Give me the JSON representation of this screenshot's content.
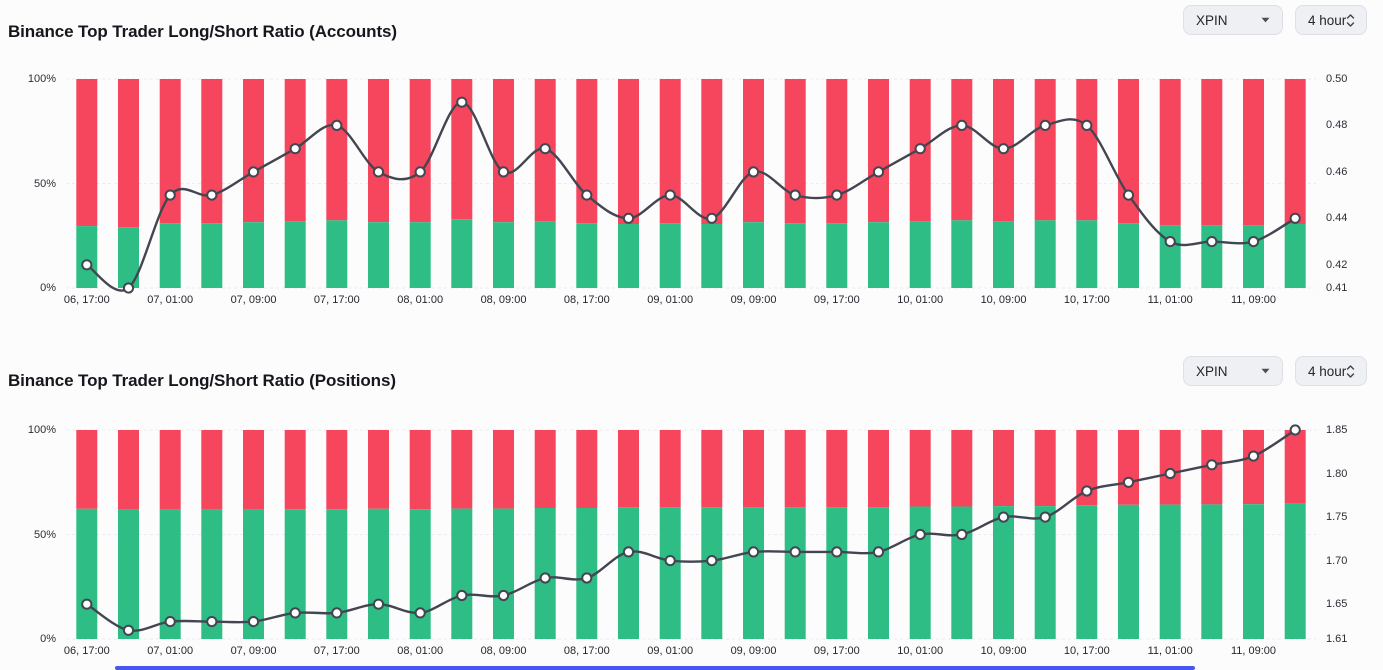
{
  "controls": {
    "symbol": "XPIN",
    "interval": "4 hour",
    "symbol_caret_icon": "caret-down",
    "interval_stepper_icon": "up-down-chevrons"
  },
  "colors": {
    "long_green": "#2ebd85",
    "short_red": "#f6465d",
    "ratio_line": "#434651",
    "dot_fill": "#ffffff",
    "grid": "#e9ebef",
    "button_bg": "#eef0f3",
    "button_border": "#dde0e6",
    "title_text": "#15171c",
    "tick_text": "#2b2e35",
    "page_bg": "#fcfcfd",
    "bottom_strip": "#4559f2"
  },
  "charts": [
    {
      "title": "Binance Top Trader Long/Short Ratio (Accounts)"
    },
    {
      "title": "Binance Top Trader Long/Short Ratio (Positions)"
    }
  ],
  "chart_data": [
    {
      "type": "bar+line",
      "title": "Binance Top Trader Long/Short Ratio (Accounts)",
      "num_bars": 30,
      "x_tick_labels": [
        "06, 17:00",
        "07, 01:00",
        "07, 09:00",
        "07, 17:00",
        "08, 01:00",
        "08, 09:00",
        "08, 17:00",
        "09, 01:00",
        "09, 09:00",
        "09, 17:00",
        "10, 01:00",
        "10, 09:00",
        "10, 17:00",
        "11, 01:00",
        "11, 09:00"
      ],
      "x_label_every_n_bars": 2,
      "left_axis": {
        "unit": "%",
        "min": 0,
        "max": 100,
        "ticks": [
          100,
          50,
          0
        ]
      },
      "right_axis": {
        "min": 0.41,
        "max": 0.5,
        "ticks": [
          0.5,
          0.48,
          0.46,
          0.44,
          0.42,
          0.41
        ]
      },
      "grid": {
        "horizontal_dashed": true,
        "vertical": false
      },
      "legend": "none",
      "series": [
        {
          "name": "long-pct",
          "type": "bar",
          "stack": true,
          "axis": "left",
          "color": "#2ebd85",
          "values": [
            29.6,
            29.1,
            31.0,
            31.0,
            31.5,
            32.0,
            32.4,
            31.5,
            31.5,
            32.9,
            31.5,
            32.0,
            31.0,
            30.6,
            31.0,
            30.6,
            31.5,
            31.0,
            31.0,
            31.5,
            32.0,
            32.4,
            32.0,
            32.4,
            32.4,
            31.0,
            30.1,
            30.1,
            30.1,
            30.6
          ]
        },
        {
          "name": "short-pct",
          "type": "bar",
          "stack": true,
          "axis": "left",
          "color": "#f6465d",
          "values": [
            70.4,
            70.9,
            69.0,
            69.0,
            68.5,
            68.0,
            67.6,
            68.5,
            68.5,
            67.1,
            68.5,
            68.0,
            69.0,
            69.4,
            69.0,
            69.4,
            68.5,
            69.0,
            69.0,
            68.5,
            68.0,
            67.6,
            68.0,
            67.6,
            67.6,
            69.0,
            69.9,
            69.9,
            69.9,
            69.4
          ]
        },
        {
          "name": "long-short-ratio",
          "type": "line",
          "axis": "right",
          "color": "#434651",
          "point_fill": "#ffffff",
          "values": [
            0.42,
            0.41,
            0.45,
            0.45,
            0.46,
            0.47,
            0.48,
            0.46,
            0.46,
            0.49,
            0.46,
            0.47,
            0.45,
            0.44,
            0.45,
            0.44,
            0.46,
            0.45,
            0.45,
            0.46,
            0.47,
            0.48,
            0.47,
            0.48,
            0.48,
            0.45,
            0.43,
            0.43,
            0.43,
            0.44
          ]
        }
      ]
    },
    {
      "type": "bar+line",
      "title": "Binance Top Trader Long/Short Ratio (Positions)",
      "num_bars": 30,
      "x_tick_labels": [
        "06, 17:00",
        "07, 01:00",
        "07, 09:00",
        "07, 17:00",
        "08, 01:00",
        "08, 09:00",
        "08, 17:00",
        "09, 01:00",
        "09, 09:00",
        "09, 17:00",
        "10, 01:00",
        "10, 09:00",
        "10, 17:00",
        "11, 01:00",
        "11, 09:00"
      ],
      "x_label_every_n_bars": 2,
      "left_axis": {
        "unit": "%",
        "min": 0,
        "max": 100,
        "ticks": [
          100,
          50,
          0
        ]
      },
      "right_axis": {
        "min": 1.61,
        "max": 1.85,
        "ticks": [
          1.85,
          1.8,
          1.75,
          1.7,
          1.65,
          1.61
        ]
      },
      "grid": {
        "horizontal_dashed": true,
        "vertical": false
      },
      "legend": "none",
      "series": [
        {
          "name": "long-pct",
          "type": "bar",
          "stack": true,
          "axis": "left",
          "color": "#2ebd85",
          "values": [
            62.3,
            61.8,
            62.0,
            62.0,
            62.0,
            62.1,
            62.1,
            62.3,
            62.1,
            62.4,
            62.4,
            62.7,
            62.7,
            63.1,
            63.0,
            63.0,
            63.1,
            63.1,
            63.1,
            63.1,
            63.4,
            63.4,
            63.6,
            63.6,
            64.0,
            64.2,
            64.3,
            64.4,
            64.5,
            64.9
          ]
        },
        {
          "name": "short-pct",
          "type": "bar",
          "stack": true,
          "axis": "left",
          "color": "#f6465d",
          "values": [
            37.7,
            38.2,
            38.0,
            38.0,
            38.0,
            37.9,
            37.9,
            37.7,
            37.9,
            37.6,
            37.6,
            37.3,
            37.3,
            36.9,
            37.0,
            37.0,
            36.9,
            36.9,
            36.9,
            36.9,
            36.6,
            36.6,
            36.4,
            36.4,
            36.0,
            35.8,
            35.7,
            35.6,
            35.5,
            35.1
          ]
        },
        {
          "name": "long-short-ratio",
          "type": "line",
          "axis": "right",
          "color": "#434651",
          "point_fill": "#ffffff",
          "values": [
            1.65,
            1.62,
            1.63,
            1.63,
            1.63,
            1.64,
            1.64,
            1.65,
            1.64,
            1.66,
            1.66,
            1.68,
            1.68,
            1.71,
            1.7,
            1.7,
            1.71,
            1.71,
            1.71,
            1.71,
            1.73,
            1.73,
            1.75,
            1.75,
            1.78,
            1.79,
            1.8,
            1.81,
            1.82,
            1.85
          ]
        }
      ]
    }
  ]
}
